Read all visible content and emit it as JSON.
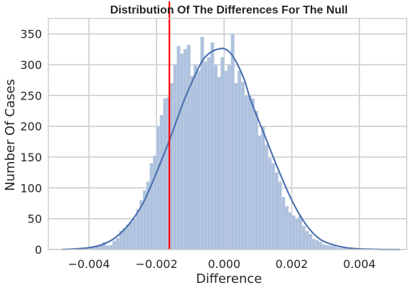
{
  "chart_data": {
    "type": "histogram",
    "title": "Distribution Of The Differences For The Null",
    "xlabel": "Difference",
    "ylabel": "Number Of Cases",
    "xlim": [
      -0.0052,
      0.0054
    ],
    "ylim": [
      0,
      375
    ],
    "grid": true,
    "x_ticks": [
      {
        "value": -0.004,
        "label": "−0.004"
      },
      {
        "value": -0.002,
        "label": "−0.002"
      },
      {
        "value": 0.0,
        "label": "0.000"
      },
      {
        "value": 0.002,
        "label": "0.002"
      },
      {
        "value": 0.004,
        "label": "0.004"
      }
    ],
    "y_ticks": [
      {
        "value": 0,
        "label": "0"
      },
      {
        "value": 50,
        "label": "50"
      },
      {
        "value": 100,
        "label": "100"
      },
      {
        "value": 150,
        "label": "150"
      },
      {
        "value": 200,
        "label": "200"
      },
      {
        "value": 250,
        "label": "250"
      },
      {
        "value": 300,
        "label": "300"
      },
      {
        "value": 350,
        "label": "350"
      }
    ],
    "bin_start": -0.0048,
    "bin_width": 0.0001,
    "bin_counts": [
      1,
      1,
      1,
      1,
      1,
      1,
      2,
      3,
      4,
      5,
      6,
      8,
      12,
      6,
      7,
      14,
      18,
      30,
      35,
      40,
      45,
      50,
      65,
      80,
      96,
      110,
      140,
      152,
      200,
      218,
      245,
      247,
      270,
      300,
      330,
      318,
      325,
      332,
      282,
      300,
      290,
      345,
      305,
      312,
      336,
      300,
      280,
      312,
      290,
      300,
      350,
      270,
      290,
      272,
      250,
      250,
      245,
      225,
      185,
      200,
      170,
      148,
      140,
      125,
      110,
      85,
      70,
      60,
      55,
      50,
      55,
      38,
      30,
      25,
      17,
      15,
      12,
      8,
      7,
      6,
      5,
      3,
      2,
      2,
      1,
      1,
      1
    ],
    "kde": {
      "x": [
        -0.0048,
        -0.0044,
        -0.004,
        -0.0036,
        -0.0032,
        -0.0028,
        -0.0024,
        -0.002,
        -0.0016,
        -0.0012,
        -0.0008,
        -0.0006,
        -0.0004,
        -0.0002,
        0.0,
        0.0002,
        0.0004,
        0.0006,
        0.0008,
        0.0012,
        0.0016,
        0.002,
        0.0024,
        0.0028,
        0.0032,
        0.0036,
        0.004,
        0.0044,
        0.0048,
        0.0052
      ],
      "y": [
        0,
        1,
        3,
        8,
        20,
        42,
        75,
        125,
        180,
        240,
        290,
        310,
        320,
        325,
        326,
        318,
        300,
        275,
        240,
        185,
        130,
        80,
        42,
        18,
        8,
        3,
        1,
        0.5,
        0,
        0
      ]
    },
    "reference_line": {
      "x": -0.00162,
      "color": "#ff0000"
    },
    "colors": {
      "bar": "#aec1dd",
      "bar_edge": "#c6d4e8",
      "kde": "#4c72b0",
      "grid": "#cccccc",
      "axis": "#cccccc"
    }
  }
}
